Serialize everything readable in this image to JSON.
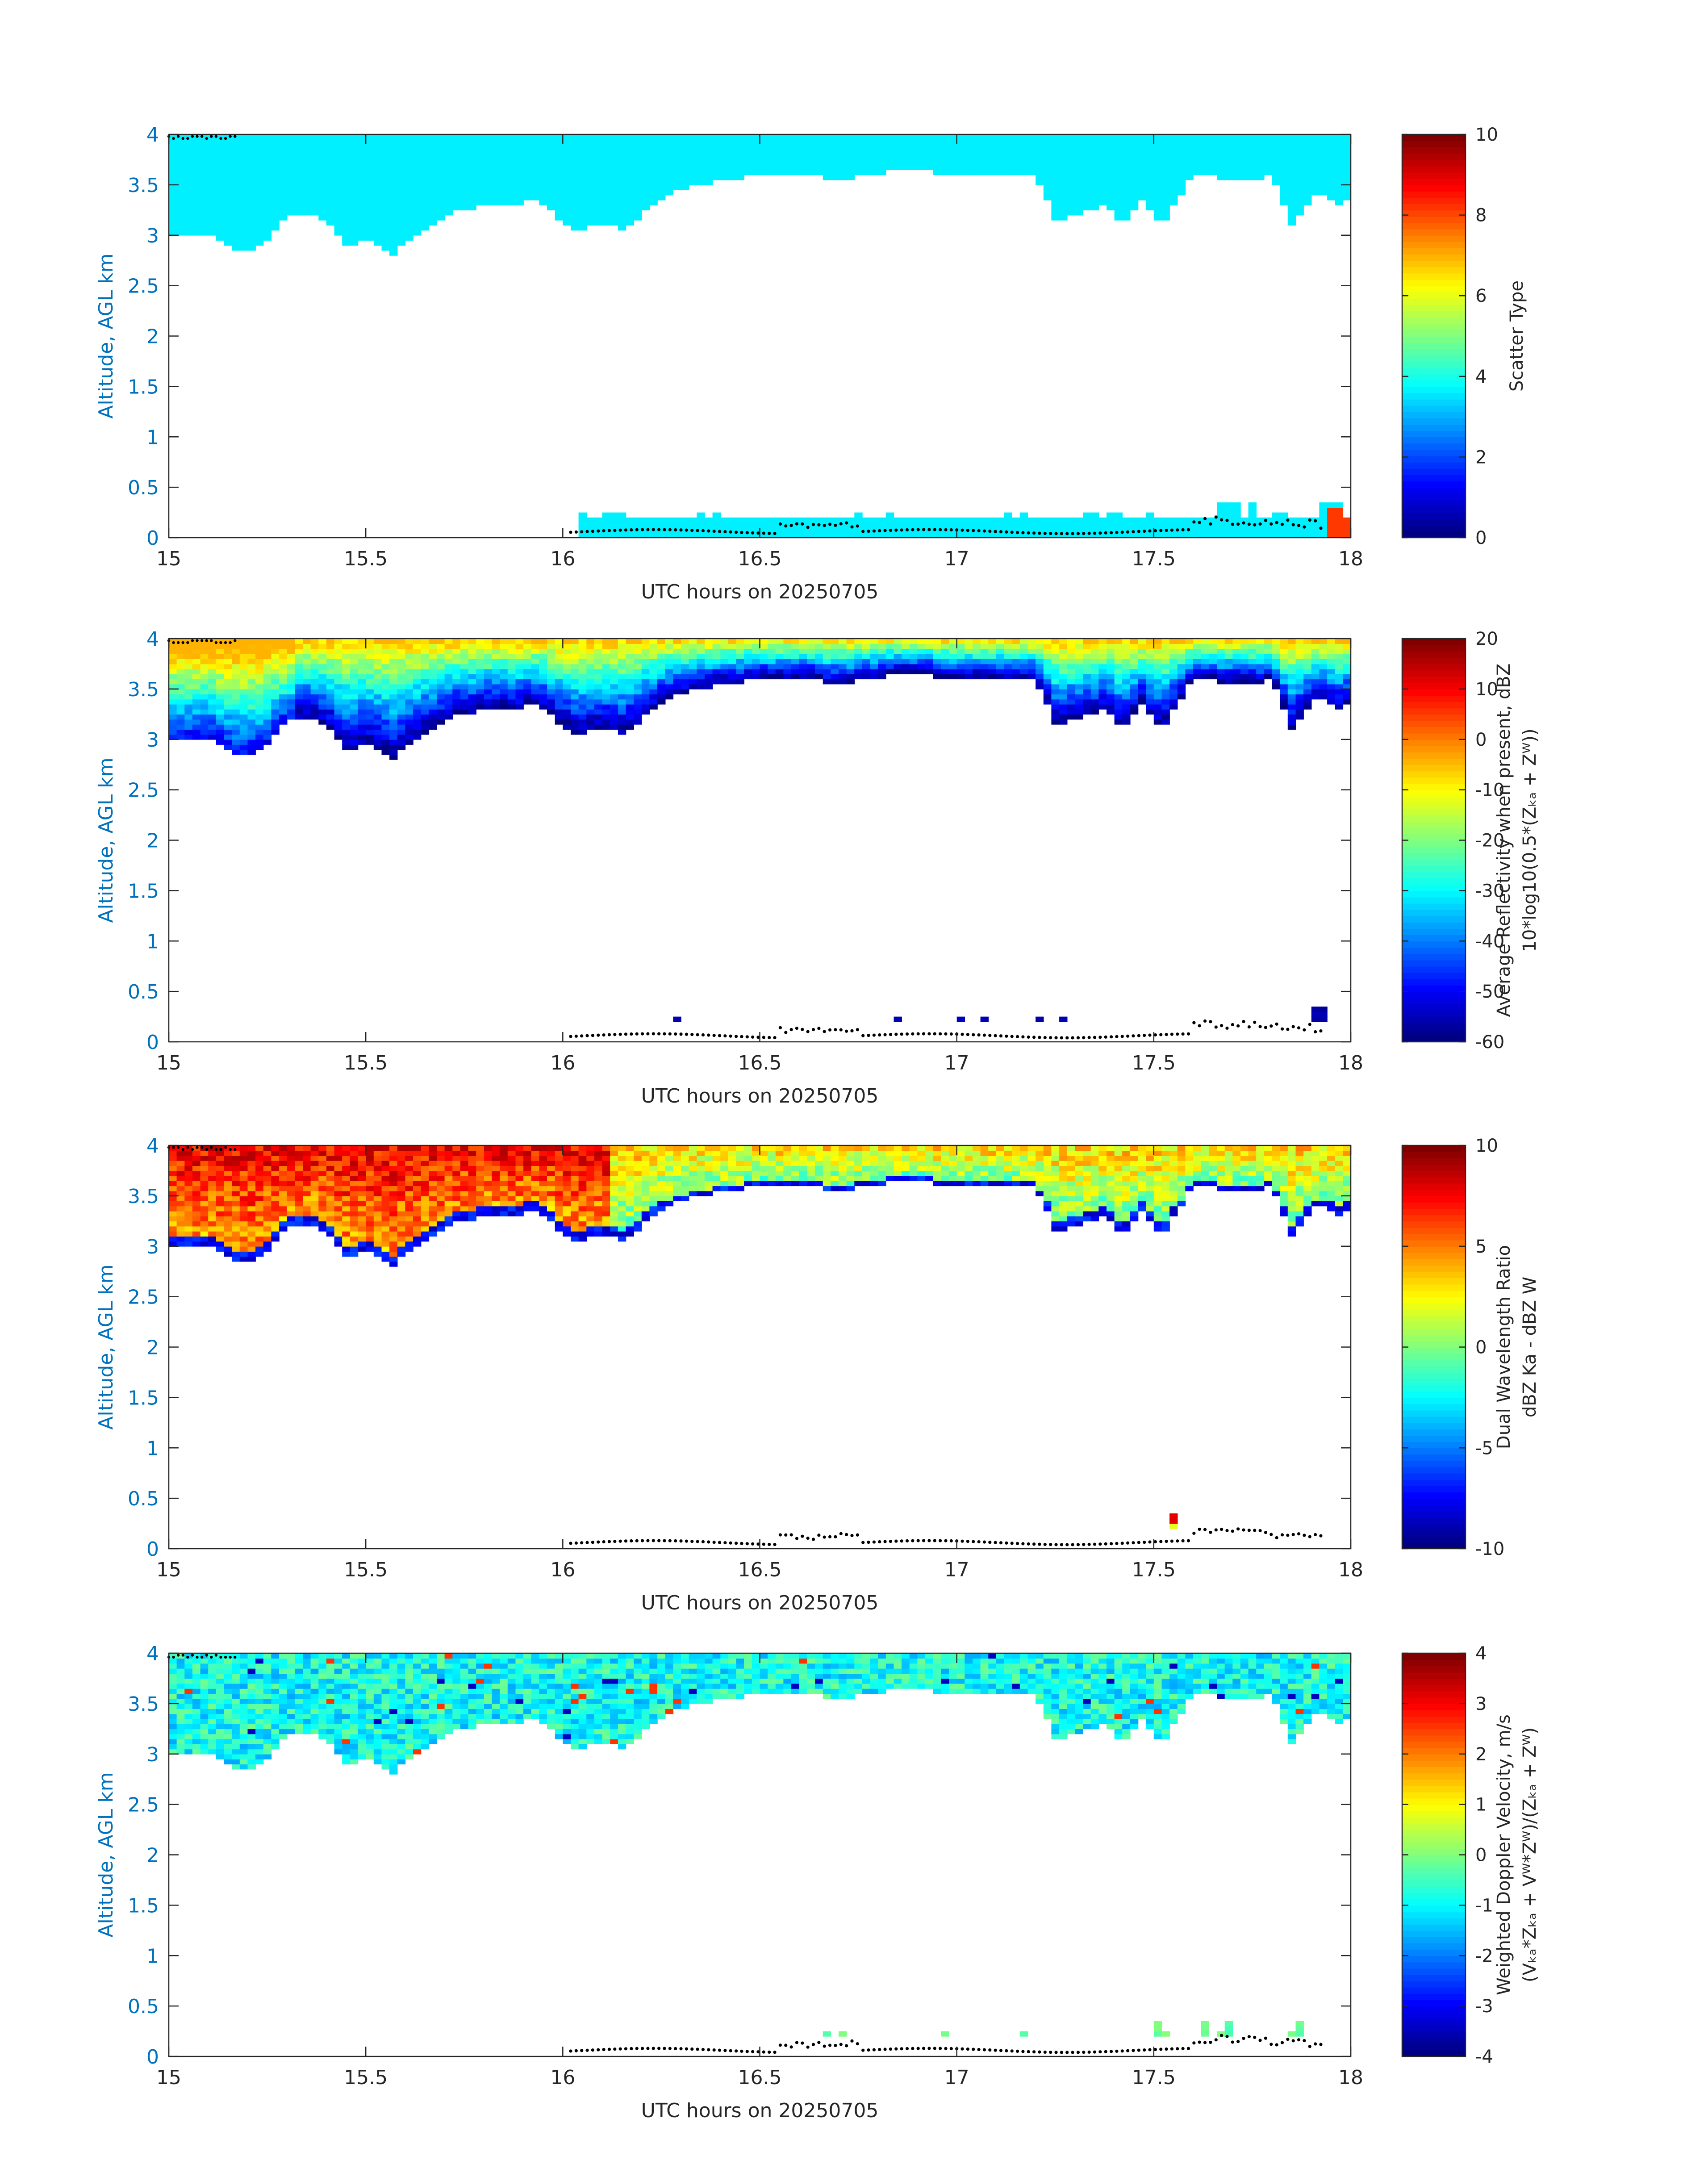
{
  "chart_data": [
    {
      "type": "heatmap",
      "xlabel": "UTC hours on 20250705",
      "ylabel": "Altitude, AGL km",
      "xlim": [
        15,
        18
      ],
      "ylim": [
        0,
        4
      ],
      "xticks": [
        "15",
        "15.5",
        "16",
        "16.5",
        "17",
        "17.5",
        "18"
      ],
      "yticks": [
        "0",
        "0.5",
        "1",
        "1.5",
        "2",
        "2.5",
        "3",
        "3.5",
        "4"
      ],
      "colorbar": {
        "label_lines": [
          "Scatter Type"
        ],
        "ticks": [
          "0",
          "2",
          "4",
          "6",
          "8",
          "10"
        ],
        "range": [
          0,
          10
        ],
        "colormap": "jet"
      },
      "field": "scatter_type",
      "grid": false
    },
    {
      "type": "heatmap",
      "xlabel": "UTC hours on 20250705",
      "ylabel": "Altitude, AGL km",
      "xlim": [
        15,
        18
      ],
      "ylim": [
        0,
        4
      ],
      "xticks": [
        "15",
        "15.5",
        "16",
        "16.5",
        "17",
        "17.5",
        "18"
      ],
      "yticks": [
        "0",
        "0.5",
        "1",
        "1.5",
        "2",
        "2.5",
        "3",
        "3.5",
        "4"
      ],
      "colorbar": {
        "label_lines": [
          "Average Reflectivity when present, dBZ",
          "10*log10(0.5*(Zₖₐ + Zᵂ))"
        ],
        "ticks": [
          "-60",
          "-50",
          "-40",
          "-30",
          "-20",
          "-10",
          "0",
          "10",
          "20"
        ],
        "range": [
          -60,
          20
        ],
        "colormap": "jet"
      },
      "field": "reflectivity",
      "grid": false
    },
    {
      "type": "heatmap",
      "xlabel": "UTC hours on 20250705",
      "ylabel": "Altitude, AGL km",
      "xlim": [
        15,
        18
      ],
      "ylim": [
        0,
        4
      ],
      "xticks": [
        "15",
        "15.5",
        "16",
        "16.5",
        "17",
        "17.5",
        "18"
      ],
      "yticks": [
        "0",
        "0.5",
        "1",
        "1.5",
        "2",
        "2.5",
        "3",
        "3.5",
        "4"
      ],
      "colorbar": {
        "label_lines": [
          "Dual Wavelength Ratio",
          "dBZ Ka - dBZ W"
        ],
        "ticks": [
          "-10",
          "-5",
          "0",
          "5",
          "10"
        ],
        "range": [
          -10,
          10
        ],
        "colormap": "jet"
      },
      "field": "dwr",
      "grid": false
    },
    {
      "type": "heatmap",
      "xlabel": "UTC hours on 20250705",
      "ylabel": "Altitude, AGL km",
      "xlim": [
        15,
        18
      ],
      "ylim": [
        0,
        4
      ],
      "xticks": [
        "15",
        "15.5",
        "16",
        "16.5",
        "17",
        "17.5",
        "18"
      ],
      "yticks": [
        "0",
        "0.5",
        "1",
        "1.5",
        "2",
        "2.5",
        "3",
        "3.5",
        "4"
      ],
      "colorbar": {
        "label_lines": [
          "Weighted Doppler Velocity, m/s",
          "(Vₖₐ*Zₖₐ + Vᵂ*Zᵂ)/(Zₖₐ + Zᵂ)"
        ],
        "ticks": [
          "-4",
          "-3",
          "-2",
          "-1",
          "0",
          "1",
          "2",
          "3",
          "4"
        ],
        "range": [
          -4,
          4
        ],
        "colormap": "jet"
      },
      "field": "doppler",
      "grid": false
    }
  ],
  "cloud_structure": {
    "upper_layer_base_km": [
      [
        15.0,
        3.0
      ],
      [
        15.1,
        3.02
      ],
      [
        15.18,
        2.82
      ],
      [
        15.24,
        2.9
      ],
      [
        15.3,
        3.2
      ],
      [
        15.38,
        3.22
      ],
      [
        15.45,
        2.9
      ],
      [
        15.52,
        2.95
      ],
      [
        15.57,
        2.8
      ],
      [
        15.62,
        3.0
      ],
      [
        15.7,
        3.2
      ],
      [
        15.78,
        3.28
      ],
      [
        15.86,
        3.3
      ],
      [
        15.92,
        3.35
      ],
      [
        15.98,
        3.2
      ],
      [
        16.02,
        3.05
      ],
      [
        16.1,
        3.1
      ],
      [
        16.16,
        3.05
      ],
      [
        16.22,
        3.3
      ],
      [
        16.3,
        3.45
      ],
      [
        16.4,
        3.55
      ],
      [
        16.5,
        3.6
      ],
      [
        16.6,
        3.6
      ],
      [
        16.7,
        3.55
      ],
      [
        16.8,
        3.62
      ],
      [
        16.9,
        3.64
      ],
      [
        17.0,
        3.6
      ],
      [
        17.1,
        3.58
      ],
      [
        17.2,
        3.6
      ],
      [
        17.25,
        3.15
      ],
      [
        17.3,
        3.2
      ],
      [
        17.38,
        3.3
      ],
      [
        17.42,
        3.1
      ],
      [
        17.47,
        3.35
      ],
      [
        17.52,
        3.1
      ],
      [
        17.6,
        3.6
      ],
      [
        17.7,
        3.55
      ],
      [
        17.8,
        3.58
      ],
      [
        17.85,
        3.1
      ],
      [
        17.92,
        3.45
      ],
      [
        17.97,
        3.3
      ],
      [
        18.0,
        3.35
      ]
    ],
    "layer_top_km": 4.0,
    "lower_layer_start_hour": 16.02,
    "lower_layer_top_km": 0.2,
    "surface_dots_start_hour": 16.02,
    "surface_dots_end_hour": 17.93,
    "top_dots_end_hour": 15.18
  }
}
